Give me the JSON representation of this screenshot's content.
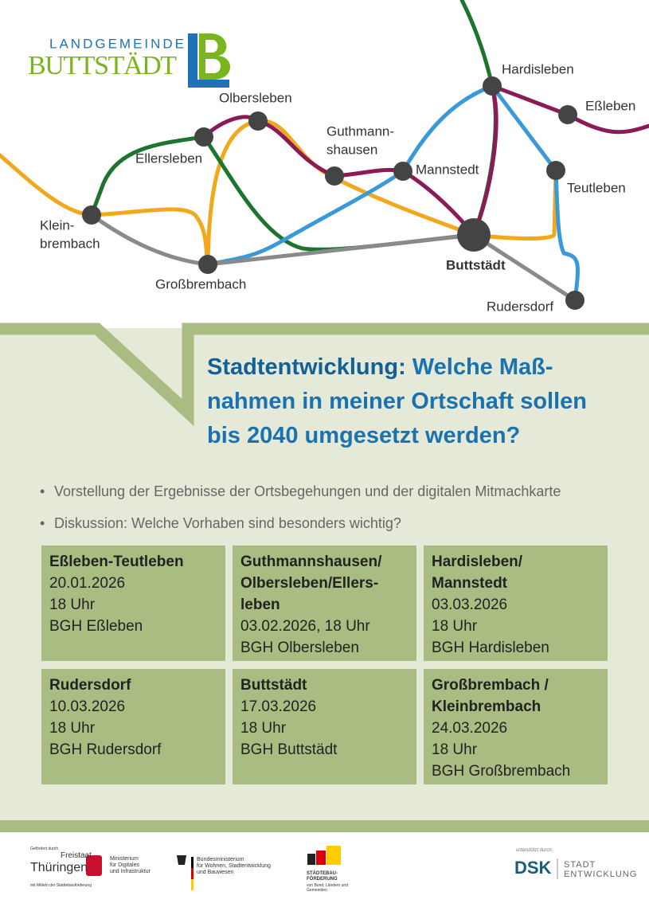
{
  "logo": {
    "top": "LANDGEMEINDE",
    "name": "BUTTSTÄDT"
  },
  "map": {
    "stations": [
      {
        "lines": [
          "Hardisleben"
        ]
      },
      {
        "lines": [
          "Eßleben"
        ]
      },
      {
        "lines": [
          "Olbersleben"
        ]
      },
      {
        "lines": [
          "Guthmann-",
          "shausen"
        ]
      },
      {
        "lines": [
          "Mannstedt"
        ]
      },
      {
        "lines": [
          "Ellersleben"
        ]
      },
      {
        "lines": [
          "Teutleben"
        ]
      },
      {
        "lines": [
          "Klein-",
          "brembach"
        ]
      },
      {
        "lines": [
          "Buttstädt"
        ]
      },
      {
        "lines": [
          "Großbrembach"
        ]
      },
      {
        "lines": [
          "Rudersdorf"
        ]
      }
    ]
  },
  "heading": {
    "lead": "Stadtentwicklung:",
    "lines": [
      "Welche Maß-",
      "nahmen in meiner Ortschaft sollen",
      "bis 2040 umgesetzt werden?"
    ]
  },
  "bullets": [
    "Vorstellung der Ergebnisse der Ortsbegehungen und der digitalen Mitmachkarte",
    "Diskussion: Welche Vorhaben sind besonders wichtig?"
  ],
  "events": [
    {
      "title": [
        "Eßleben-Teutleben"
      ],
      "lines": [
        "20.01.2026",
        "18 Uhr",
        "BGH Eßleben"
      ]
    },
    {
      "title": [
        "Guthmannshausen/",
        "Olbersleben/Ellers-",
        "leben"
      ],
      "lines": [
        "03.02.2026, 18 Uhr",
        "BGH Olbersleben"
      ]
    },
    {
      "title": [
        "Hardisleben/",
        "Mannstedt"
      ],
      "lines": [
        "03.03.2026",
        "18 Uhr",
        "BGH Hardisleben"
      ]
    },
    {
      "title": [
        "Rudersdorf"
      ],
      "lines": [
        "10.03.2026",
        "18 Uhr",
        "BGH Rudersdorf"
      ]
    },
    {
      "title": [
        "Buttstädt"
      ],
      "lines": [
        "17.03.2026",
        "18 Uhr",
        "BGH Buttstädt"
      ]
    },
    {
      "title": [
        "Großbrembach /",
        "Kleinbrembach"
      ],
      "lines": [
        "24.03.2026",
        "18 Uhr",
        "BGH Großbrembach"
      ]
    }
  ],
  "footer": {
    "thueringen": {
      "note": "Gefördert durch",
      "state": "Freistaat",
      "name": "Thüringen",
      "ministry": [
        "Ministerium",
        "für Digitales",
        "und Infrastruktur"
      ],
      "funding": "mit Mitteln der Städtebauförderung"
    },
    "bund": {
      "lines": [
        "Bundesministerium",
        "für Wohnen, Stadtentwicklung",
        "und Bauwesen"
      ]
    },
    "staedtebau": {
      "lines": [
        "STÄDTEBAU-",
        "FÖRDERUNG"
      ],
      "sub": [
        "von Bund, Ländern und",
        "Gemeinden"
      ]
    },
    "dsk": {
      "note": "unterstützt durch:",
      "name": "DSK",
      "lines": [
        "STADT",
        "ENTWICKLUNG"
      ]
    }
  }
}
